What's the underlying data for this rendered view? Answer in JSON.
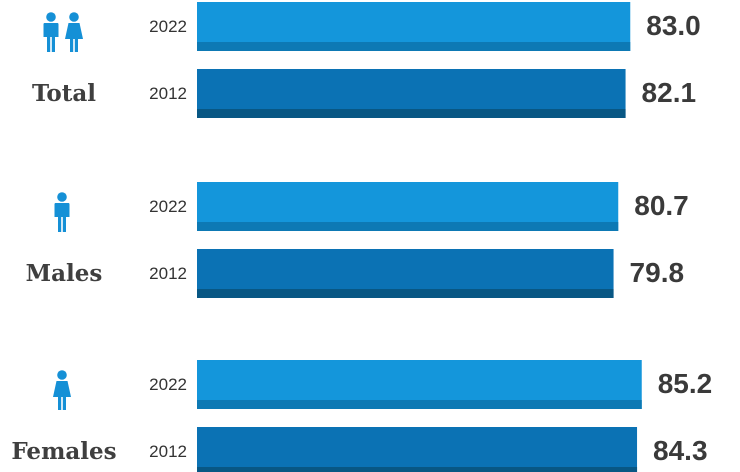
{
  "chart_data": {
    "type": "bar",
    "orientation": "horizontal",
    "categories": [
      "Total",
      "Males",
      "Females"
    ],
    "series": [
      {
        "name": "2022",
        "values": [
          83.0,
          80.7,
          85.2
        ]
      },
      {
        "name": "2012",
        "values": [
          82.1,
          79.8,
          84.3
        ]
      }
    ],
    "value_labels": [
      [
        "83.0",
        "80.7",
        "85.2"
      ],
      [
        "82.1",
        "79.8",
        "84.3"
      ]
    ],
    "icons": [
      "male-female-icon",
      "male-icon",
      "female-icon"
    ],
    "title": "",
    "xlabel": "",
    "ylabel": "",
    "grid": false,
    "legend": "none",
    "colors": {
      "2022": "#1496db",
      "2022_shade": "#0d79b4",
      "2012": "#0b72b4",
      "2012_shade": "#085784",
      "icon": "#1590d6",
      "text": "#3a3a3a"
    }
  }
}
